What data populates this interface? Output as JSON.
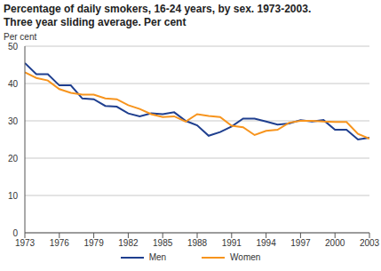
{
  "chart_data": {
    "type": "line",
    "title": "Percentage of daily smokers, 16-24 years, by sex. 1973-2003.",
    "subtitle": "Three year sliding average. Per cent",
    "y_label": "Per cent",
    "x": [
      1973,
      1974,
      1975,
      1976,
      1977,
      1978,
      1979,
      1980,
      1981,
      1982,
      1983,
      1984,
      1985,
      1986,
      1987,
      1988,
      1989,
      1990,
      1991,
      1992,
      1993,
      1994,
      1995,
      1996,
      1997,
      1998,
      1999,
      2000,
      2001,
      2002,
      2003
    ],
    "series": [
      {
        "name": "Men",
        "color": "#1f3f8f",
        "values": [
          45.5,
          42.5,
          42.5,
          39.5,
          39.5,
          36,
          35.8,
          34,
          33.8,
          32,
          31.2,
          32,
          31.8,
          32.3,
          30,
          28.8,
          26,
          27,
          28.5,
          30.6,
          30.6,
          29.8,
          29,
          29.3,
          30.2,
          29.8,
          30.2,
          27.6,
          27.6,
          25,
          25.5
        ]
      },
      {
        "name": "Women",
        "color": "#f7941d",
        "values": [
          43,
          41.5,
          40.8,
          38.5,
          37.5,
          37,
          37,
          36,
          35.8,
          34.2,
          33.2,
          31.8,
          31,
          31.2,
          29.8,
          31.8,
          31.3,
          31,
          28.7,
          28.3,
          26.2,
          27.3,
          27.6,
          29.5,
          30,
          30,
          29.8,
          29.7,
          29.7,
          26.5,
          25.2
        ]
      }
    ],
    "xlim": [
      1973,
      2003
    ],
    "xticks": [
      1973,
      1976,
      1979,
      1982,
      1985,
      1988,
      1991,
      1994,
      1997,
      2000,
      2003
    ],
    "ylim": [
      0,
      50
    ],
    "yticks": [
      0,
      10,
      20,
      30,
      40,
      50
    ],
    "grid": true
  }
}
